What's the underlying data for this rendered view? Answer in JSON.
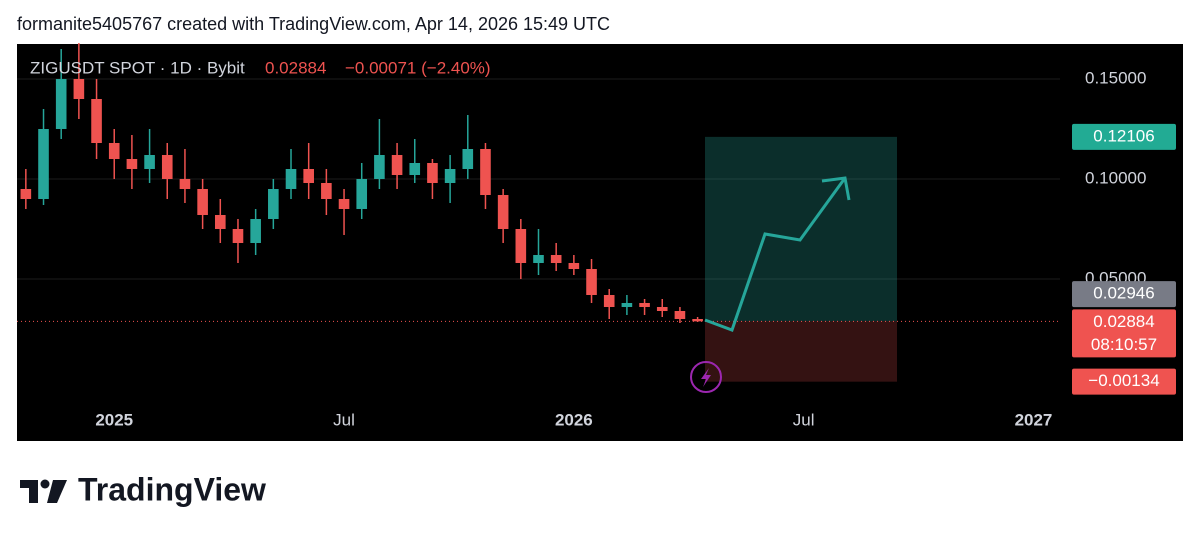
{
  "header": {
    "caption": "formanite5405767 created with TradingView.com, Apr 14, 2026 15:49 UTC"
  },
  "footer": {
    "brand": "TradingView"
  },
  "chart_data": {
    "type": "candlestick",
    "symbol": "ZIGUSDT SPOT · 1D · Bybit",
    "last": 0.02884,
    "change": "−0.00071 (−2.40%)",
    "up_color": "#26a69a",
    "down_color": "#ef5350",
    "grid": true,
    "categories": [
      null,
      null,
      null,
      null,
      null,
      "2025",
      null,
      null,
      null,
      null,
      null,
      null,
      null,
      null,
      null,
      null,
      null,
      null,
      "Jul",
      null,
      null,
      null,
      null,
      null,
      null,
      null,
      null,
      null,
      null,
      null,
      null,
      "2026",
      null,
      null,
      null,
      null,
      null,
      null,
      null,
      null,
      null,
      null,
      null,
      null,
      "Jul",
      null,
      null,
      null,
      null,
      null,
      null,
      null,
      null,
      null,
      null,
      null,
      null,
      "2027",
      null
    ],
    "open": [
      0.095,
      0.09,
      0.125,
      0.15,
      0.14,
      0.118,
      0.11,
      0.105,
      0.112,
      0.1,
      0.095,
      0.082,
      0.075,
      0.068,
      0.08,
      0.095,
      0.105,
      0.098,
      0.09,
      0.085,
      0.1,
      0.112,
      0.102,
      0.108,
      0.098,
      0.105,
      0.115,
      0.092,
      0.075,
      0.058,
      0.062,
      0.058,
      0.055,
      0.042,
      0.036,
      0.038,
      0.036,
      0.034,
      0.03,
      null,
      null,
      null,
      null,
      null,
      null,
      null,
      null,
      null,
      null,
      null,
      null,
      null,
      null,
      null,
      null,
      null,
      null,
      null,
      null
    ],
    "high": [
      0.105,
      0.135,
      0.165,
      0.168,
      0.15,
      0.125,
      0.122,
      0.125,
      0.118,
      0.115,
      0.1,
      0.09,
      0.08,
      0.085,
      0.1,
      0.115,
      0.118,
      0.105,
      0.095,
      0.108,
      0.13,
      0.118,
      0.12,
      0.11,
      0.112,
      0.132,
      0.118,
      0.095,
      0.08,
      0.075,
      0.068,
      0.062,
      0.06,
      0.045,
      0.042,
      0.04,
      0.04,
      0.036,
      0.031,
      null,
      null,
      null,
      null,
      null,
      null,
      null,
      null,
      null,
      null,
      null,
      null,
      null,
      null,
      null,
      null,
      null,
      null,
      null,
      null
    ],
    "low": [
      0.085,
      0.087,
      0.12,
      0.13,
      0.11,
      0.1,
      0.095,
      0.098,
      0.09,
      0.088,
      0.075,
      0.068,
      0.058,
      0.062,
      0.075,
      0.09,
      0.09,
      0.082,
      0.072,
      0.08,
      0.095,
      0.095,
      0.098,
      0.09,
      0.088,
      0.1,
      0.085,
      0.068,
      0.05,
      0.052,
      0.054,
      0.052,
      0.038,
      0.03,
      0.032,
      0.032,
      0.031,
      0.028,
      0.0285,
      null,
      null,
      null,
      null,
      null,
      null,
      null,
      null,
      null,
      null,
      null,
      null,
      null,
      null,
      null,
      null,
      null,
      null,
      null,
      null
    ],
    "close": [
      0.09,
      0.125,
      0.15,
      0.14,
      0.118,
      0.11,
      0.105,
      0.112,
      0.1,
      0.095,
      0.082,
      0.075,
      0.068,
      0.08,
      0.095,
      0.105,
      0.098,
      0.09,
      0.085,
      0.1,
      0.112,
      0.102,
      0.108,
      0.098,
      0.105,
      0.115,
      0.092,
      0.075,
      0.058,
      0.062,
      0.058,
      0.055,
      0.042,
      0.036,
      0.038,
      0.036,
      0.034,
      0.03,
      0.02884,
      null,
      null,
      null,
      null,
      null,
      null,
      null,
      null,
      null,
      null,
      null,
      null,
      null,
      null,
      null,
      null,
      null,
      null,
      null,
      null
    ],
    "ylim": [
      -0.0105,
      0.1675
    ],
    "yticks": [
      {
        "value": 0.05,
        "label": "0.05000"
      },
      {
        "value": 0.1,
        "label": "0.10000"
      },
      {
        "value": 0.15,
        "label": "0.15000"
      }
    ],
    "target": 0.12106,
    "target_color": "#22ab94",
    "entry": 0.02884,
    "countdown": "08:10:57",
    "stop": {
      "value": -0.00134,
      "label": "−0.00134"
    },
    "marker": 0.02946
  }
}
